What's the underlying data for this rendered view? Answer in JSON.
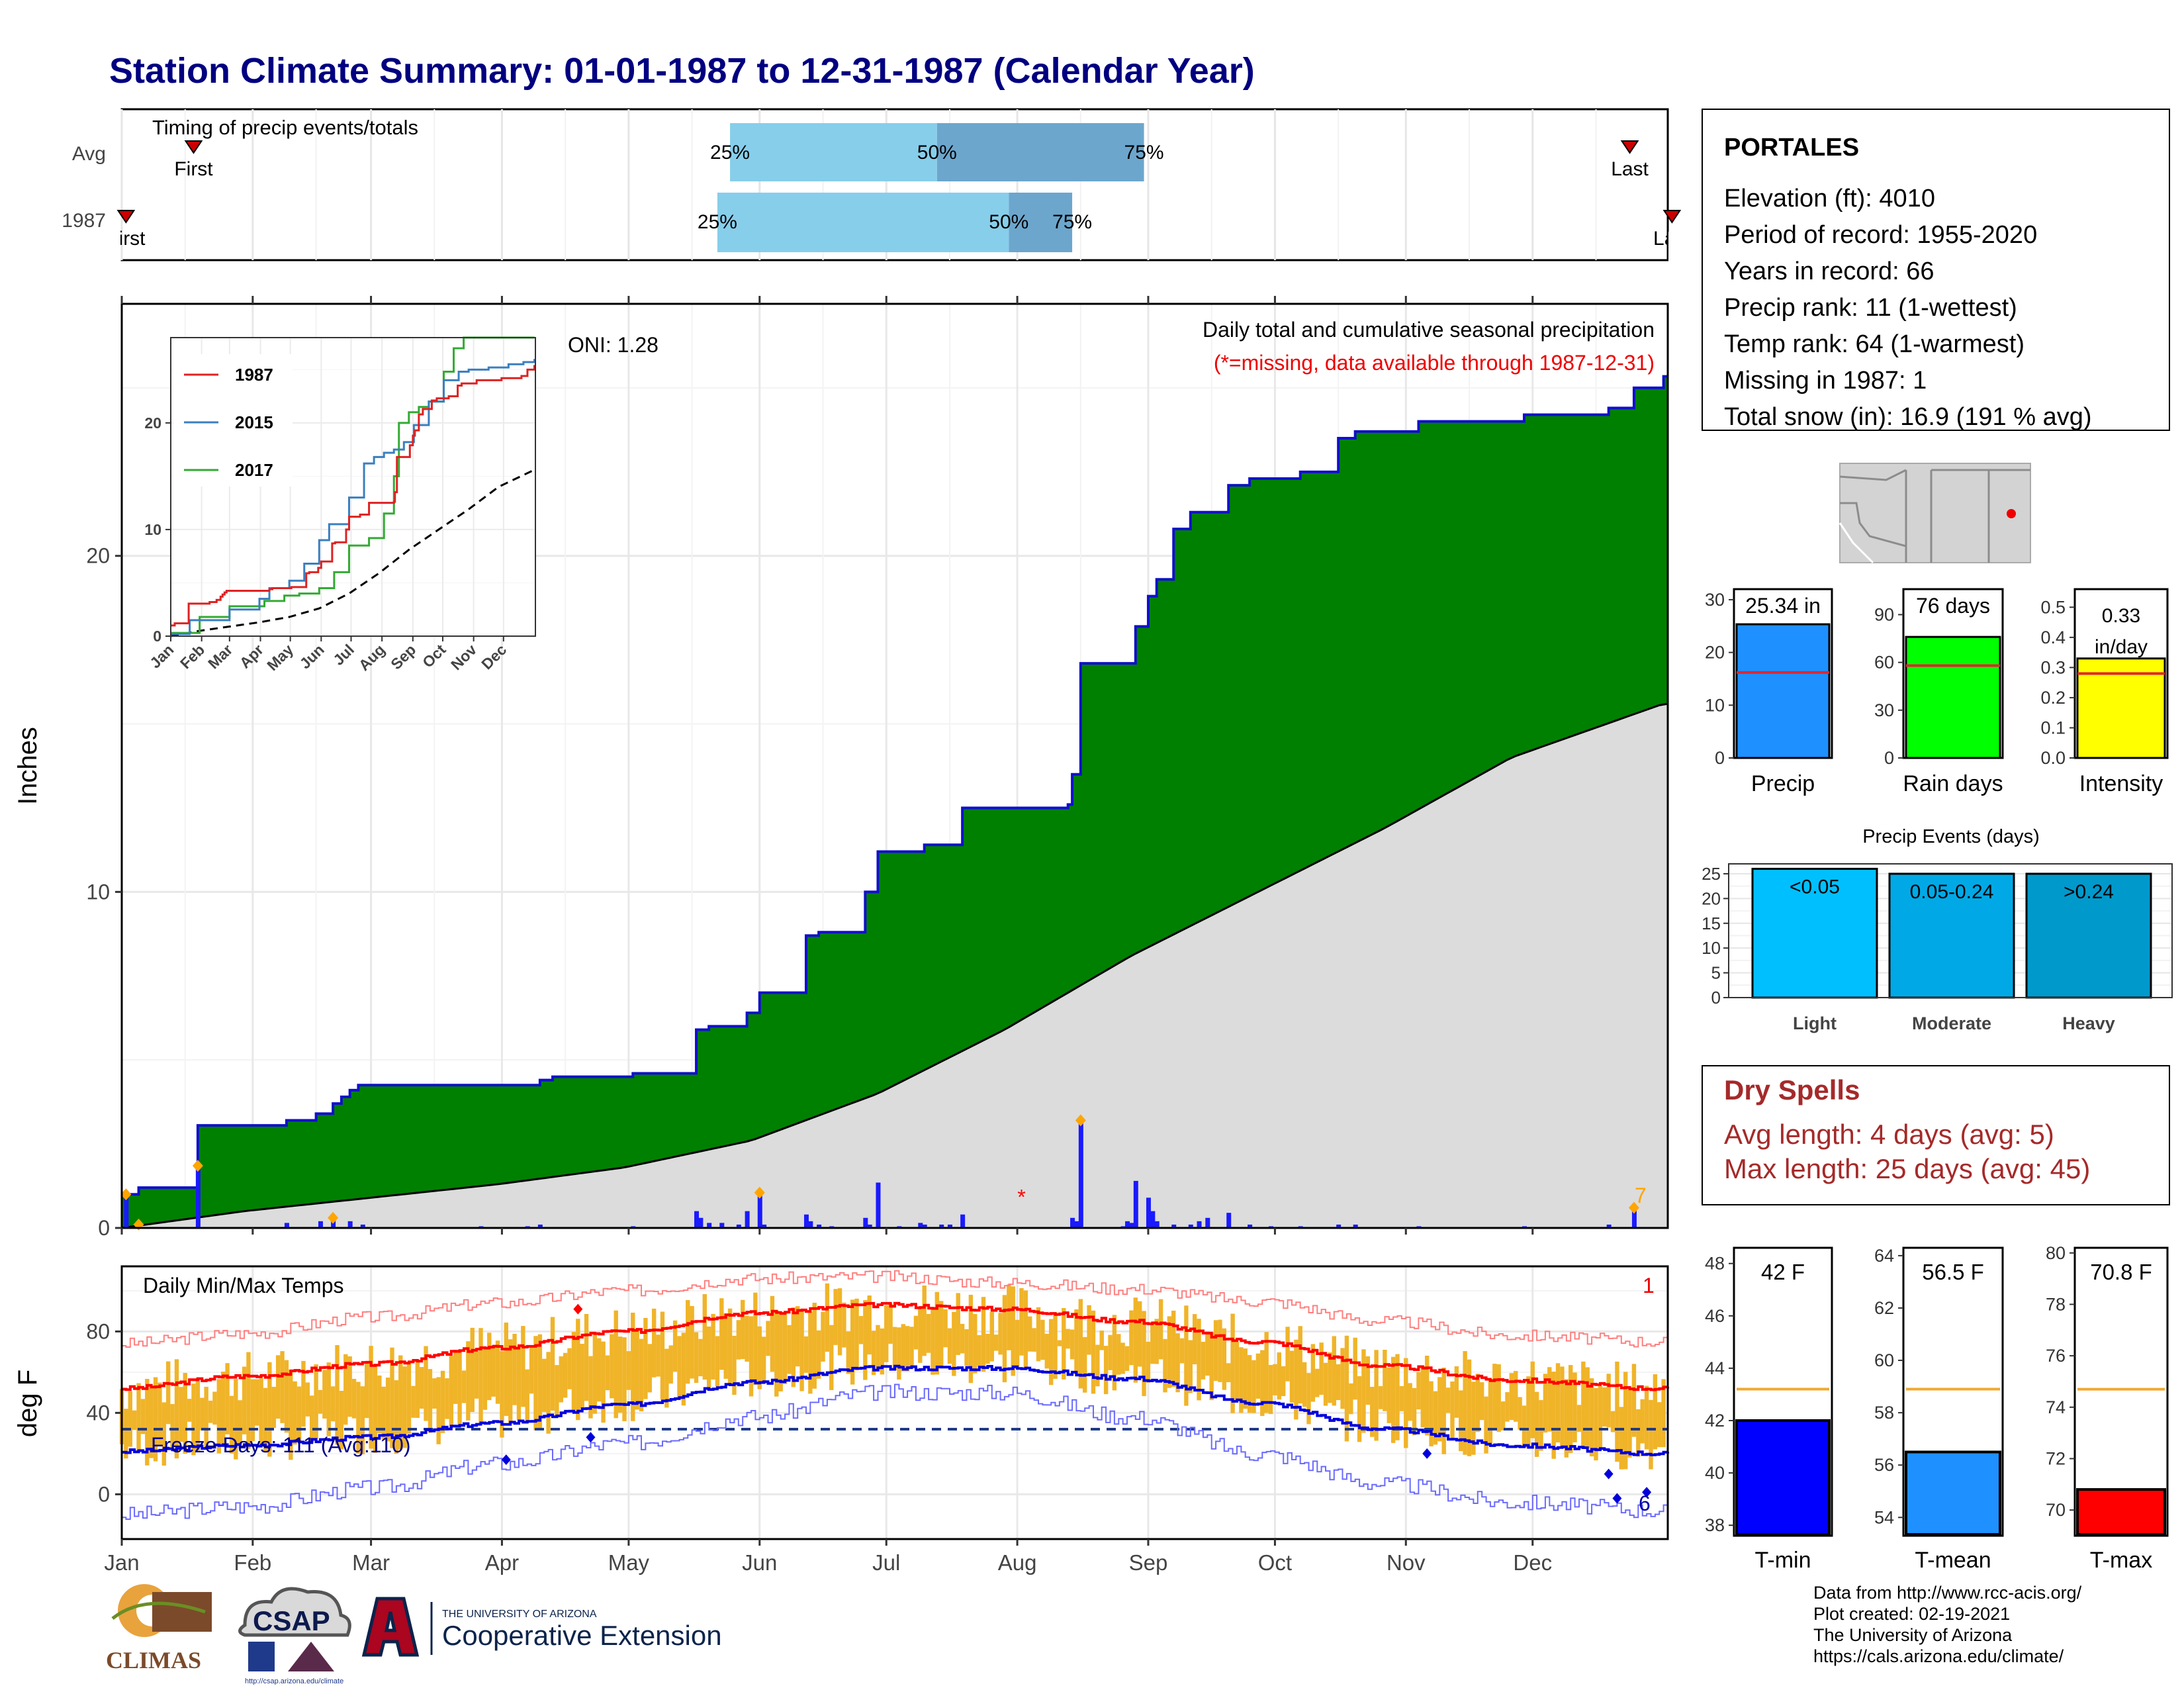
{
  "title": "Station Climate Summary: 01-01-1987 to 12-31-1987 (Calendar Year)",
  "timing": {
    "label": "Timing of precip events/totals",
    "rows": [
      {
        "name": "Avg",
        "first_doy": 18,
        "last_doy": 358,
        "p25_doy": 145,
        "p50_doy": 194,
        "p75_doy": 243
      },
      {
        "name": "1987",
        "first_doy": 2,
        "last_doy": 368,
        "p25_doy": 142,
        "p50_doy": 211,
        "p75_doy": 226
      }
    ],
    "first_label": "First",
    "last_label": "Last",
    "pct_labels": [
      "25%",
      "50%",
      "75%"
    ]
  },
  "station": {
    "name": "PORTALES",
    "lines": [
      "Elevation (ft): 4010",
      "Period of record: 1955-2020",
      "Years in record: 66",
      "Precip rank: 11 (1-wettest)",
      "Temp rank: 64 (1-warmest)",
      "Missing in 1987: 1",
      "Total snow (in): 16.9 (191 % avg)"
    ]
  },
  "precip_panel": {
    "title": "Daily total and cumulative seasonal precipitation",
    "subtitle": "(*=missing, data available through 1987-12-31)",
    "ylabel": "Inches",
    "oni": "ONI: 1.28",
    "extreme_count": "7",
    "colors": {
      "cumulative_fill": "#008000",
      "cumulative_line": "#1010cc",
      "normal_fill": "#dcdcdc",
      "daily_bar": "#1a1aff",
      "marker": "#ffa500",
      "missing": "#ff0000"
    }
  },
  "inset": {
    "series": [
      "1987",
      "2015",
      "2017"
    ],
    "colors": [
      "#dd2222",
      "#3a7fc0",
      "#33aa33"
    ],
    "months": [
      "Jan",
      "Feb",
      "Mar",
      "Apr",
      "May",
      "Jun",
      "Jul",
      "Aug",
      "Sep",
      "Oct",
      "Nov",
      "Dec"
    ],
    "yticks": [
      "0",
      "10",
      "20"
    ]
  },
  "temp_panel": {
    "title": "Daily Min/Max Temps",
    "ylabel": "deg F",
    "freeze_label": "Freeze Days: 111 (Avg:110)",
    "count_high": "1",
    "count_low": "6",
    "yticks": [
      "0",
      "40",
      "80"
    ]
  },
  "months": [
    "Jan",
    "Feb",
    "Mar",
    "Apr",
    "May",
    "Jun",
    "Jul",
    "Aug",
    "Sep",
    "Oct",
    "Nov",
    "Dec"
  ],
  "summary_bars": [
    {
      "label": "Precip",
      "value_label": "25.34 in",
      "value": 25.34,
      "avg": 16.2,
      "ymax": 32,
      "yticks": [
        "0",
        "10",
        "20",
        "30"
      ],
      "color": "#1e90ff"
    },
    {
      "label": "Rain days",
      "value_label": "76 days",
      "value": 76,
      "avg": 58,
      "ymax": 106,
      "yticks": [
        "0",
        "30",
        "60",
        "90"
      ],
      "color": "#00ff00"
    },
    {
      "label": "Intensity",
      "value_label": "0.33 in/day",
      "value": 0.33,
      "avg": 0.28,
      "ymax": 0.56,
      "yticks": [
        "0.0",
        "0.1",
        "0.2",
        "0.3",
        "0.4",
        "0.5"
      ],
      "color": "#ffff00"
    }
  ],
  "events": {
    "title": "Precip Events (days)",
    "bars": [
      {
        "label": "Light",
        "range": "<0.05",
        "value": 26,
        "color": "#00bfff"
      },
      {
        "label": "Moderate",
        "range": "0.05-0.24",
        "value": 25,
        "color": "#00a9e6"
      },
      {
        "label": "Heavy",
        "range": ">0.24",
        "value": 25,
        "color": "#0099cc"
      }
    ],
    "yticks": [
      "0",
      "5",
      "10",
      "15",
      "20",
      "25"
    ]
  },
  "dry_spells": {
    "title": "Dry Spells",
    "avg": "Avg length: 4 days (avg: 5)",
    "max": "Max length: 25 days (avg: 45)"
  },
  "temp_bars": [
    {
      "label": "T-min",
      "value_label": "42 F",
      "value": 42.0,
      "avg": 43.2,
      "ymin": 37.6,
      "ymax": 48.6,
      "yticks": [
        "38",
        "40",
        "42",
        "44",
        "46",
        "48"
      ],
      "color": "#0000ff"
    },
    {
      "label": "T-mean",
      "value_label": "56.5 F",
      "value": 56.5,
      "avg": 58.9,
      "ymin": 53.3,
      "ymax": 64.3,
      "yticks": [
        "54",
        "56",
        "58",
        "60",
        "62",
        "64"
      ],
      "color": "#1e90ff"
    },
    {
      "label": "T-max",
      "value_label": "70.8 F",
      "value": 70.8,
      "avg": 74.7,
      "ymin": 69.0,
      "ymax": 80.2,
      "yticks": [
        "70",
        "72",
        "74",
        "76",
        "78",
        "80"
      ],
      "color": "#ff0000"
    }
  ],
  "chart_data": [
    {
      "type": "area",
      "title": "Daily total and cumulative seasonal precipitation",
      "ylabel": "Inches",
      "ylim": [
        0,
        27.5
      ],
      "xlim_doy": [
        1,
        367
      ],
      "cumulative": {
        "doy": [
          1,
          5,
          19,
          40,
          47,
          51,
          53,
          55,
          57,
          100,
          103,
          122,
          137,
          140,
          149,
          152,
          163,
          166,
          177,
          180,
          191,
          200,
          212,
          225,
          226,
          228,
          238,
          241,
          244,
          246,
          250,
          254,
          263,
          268,
          280,
          289,
          293,
          308,
          333,
          353,
          359,
          366
        ],
        "inches": [
          1.0,
          1.2,
          3.05,
          3.2,
          3.4,
          3.7,
          3.9,
          4.1,
          4.25,
          4.4,
          4.5,
          4.6,
          5.9,
          6.0,
          6.4,
          7.0,
          8.7,
          8.8,
          10.0,
          11.2,
          11.4,
          12.5,
          12.5,
          12.6,
          13.5,
          16.8,
          16.8,
          17.9,
          18.8,
          19.3,
          20.8,
          21.3,
          22.1,
          22.3,
          22.5,
          23.5,
          23.7,
          24.0,
          24.2,
          24.4,
          25.0,
          25.34
        ]
      },
      "normal_cumulative": {
        "doy": [
          1,
          30,
          60,
          90,
          120,
          150,
          180,
          210,
          240,
          270,
          300,
          330,
          366
        ],
        "inches": [
          0.0,
          0.5,
          0.9,
          1.3,
          1.8,
          2.6,
          4.0,
          5.9,
          8.1,
          10.0,
          11.9,
          14.0,
          15.6
        ]
      },
      "daily": {
        "doy": [
          2,
          5,
          19,
          40,
          48,
          51,
          55,
          58,
          86,
          97,
          100,
          122,
          137,
          138,
          140,
          143,
          147,
          149,
          152,
          153,
          163,
          164,
          166,
          169,
          177,
          178,
          180,
          185,
          190,
          191,
          195,
          197,
          200,
          226,
          227,
          228,
          238,
          239,
          240,
          241,
          244,
          245,
          246,
          250,
          254,
          256,
          258,
          263,
          268,
          273,
          280,
          289,
          293,
          308,
          333,
          353,
          359
        ],
        "inches": [
          1.0,
          0.1,
          1.85,
          0.15,
          0.2,
          0.3,
          0.2,
          0.1,
          0.05,
          0.05,
          0.1,
          0.05,
          0.5,
          0.3,
          0.15,
          0.15,
          0.1,
          0.5,
          1.05,
          0.1,
          0.4,
          0.2,
          0.1,
          0.05,
          0.3,
          0.1,
          1.35,
          0.05,
          0.15,
          0.1,
          0.1,
          0.1,
          0.4,
          0.3,
          0.2,
          3.2,
          0.05,
          0.2,
          0.15,
          1.4,
          0.9,
          0.5,
          0.2,
          0.1,
          0.1,
          0.2,
          0.3,
          0.45,
          0.1,
          0.05,
          0.05,
          0.1,
          0.1,
          0.05,
          0.05,
          0.1,
          0.6
        ]
      },
      "extreme_markers_doy": [
        2,
        5,
        19,
        51,
        152,
        228,
        359
      ],
      "missing_doy": [
        214
      ]
    },
    {
      "type": "line",
      "title": "Daily Min/Max Temps",
      "ylabel": "deg F",
      "ylim": [
        -22,
        112
      ],
      "series": [
        {
          "name": "Tmax normal",
          "x_doy": [
            1,
            30,
            60,
            90,
            120,
            150,
            180,
            210,
            240,
            270,
            300,
            330,
            366
          ],
          "values": [
            52,
            58,
            64,
            72,
            80,
            89,
            93,
            91,
            85,
            75,
            63,
            56,
            52
          ]
        },
        {
          "name": "Tmin normal",
          "x_doy": [
            1,
            30,
            60,
            90,
            120,
            150,
            180,
            210,
            240,
            270,
            300,
            330,
            366
          ],
          "values": [
            21,
            24,
            28,
            35,
            44,
            55,
            62,
            62,
            57,
            45,
            32,
            24,
            20
          ]
        },
        {
          "name": "Tmax record",
          "x_doy": [
            1,
            30,
            60,
            90,
            120,
            150,
            180,
            210,
            240,
            270,
            300,
            330,
            366
          ],
          "values": [
            74,
            79,
            87,
            94,
            100,
            106,
            107,
            104,
            101,
            95,
            85,
            78,
            75
          ]
        },
        {
          "name": "Tmin record",
          "x_doy": [
            1,
            30,
            60,
            90,
            120,
            150,
            180,
            210,
            240,
            270,
            300,
            330,
            366
          ],
          "values": [
            -10,
            -6,
            3,
            15,
            25,
            38,
            50,
            50,
            38,
            20,
            5,
            -4,
            -8
          ]
        }
      ],
      "freeze_line": 32
    },
    {
      "type": "bar",
      "title": "Precip Events (days)",
      "categories": [
        "Light",
        "Moderate",
        "Heavy"
      ],
      "values": [
        26,
        25,
        25
      ]
    }
  ]
}
